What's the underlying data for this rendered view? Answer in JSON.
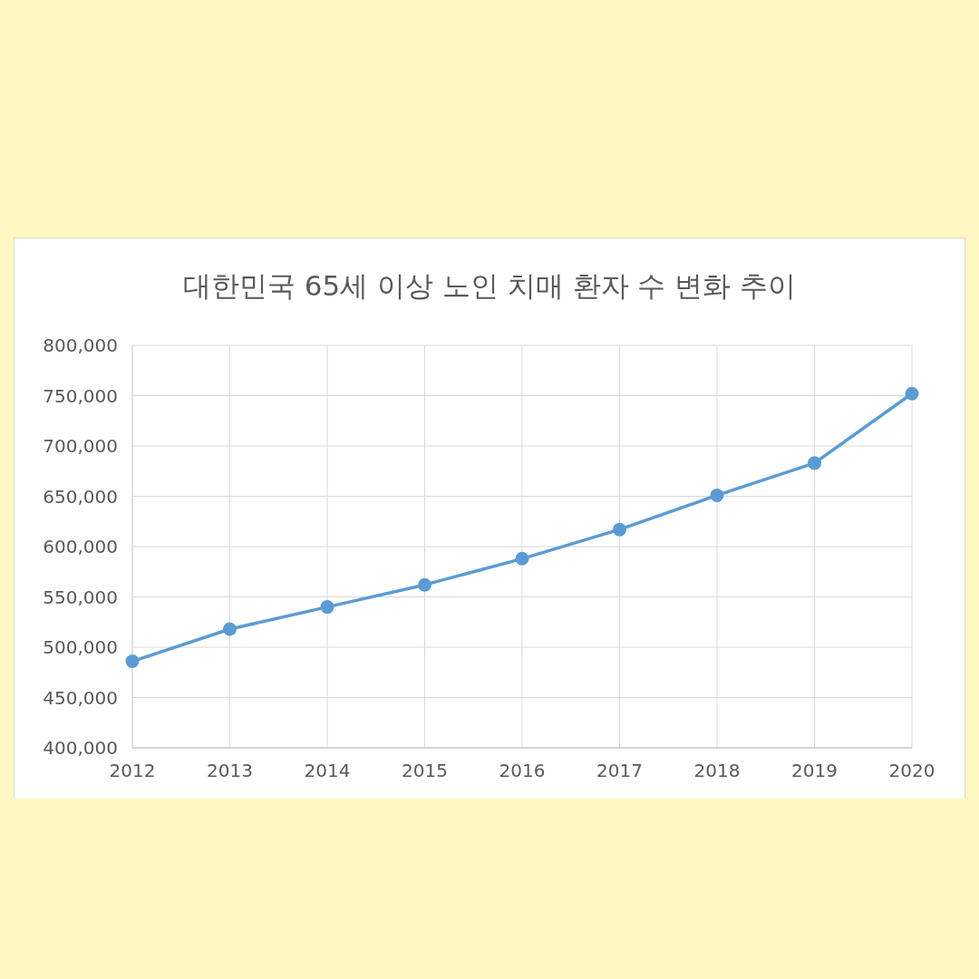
{
  "chart_data": {
    "type": "line",
    "title": "대한민국 65세 이상 노인 치매 환자 수 변화 추이",
    "categories": [
      "2012",
      "2013",
      "2014",
      "2015",
      "2016",
      "2017",
      "2018",
      "2019",
      "2020"
    ],
    "series": [
      {
        "color": "#5b9bd5",
        "values": [
          486000,
          518000,
          540000,
          562000,
          588000,
          617000,
          651000,
          683000,
          752000
        ]
      }
    ],
    "ylim": [
      400000,
      800000
    ],
    "yticks": [
      {
        "value": 400000,
        "label": "400,000"
      },
      {
        "value": 450000,
        "label": "450,000"
      },
      {
        "value": 500000,
        "label": "500,000"
      },
      {
        "value": 550000,
        "label": "550,000"
      },
      {
        "value": 600000,
        "label": "600,000"
      },
      {
        "value": 650000,
        "label": "650,000"
      },
      {
        "value": 700000,
        "label": "700,000"
      },
      {
        "value": 750000,
        "label": "750,000"
      },
      {
        "value": 800000,
        "label": "800,000"
      }
    ],
    "grid": true,
    "legend": false,
    "marker": "circle",
    "line_style": "solid"
  }
}
